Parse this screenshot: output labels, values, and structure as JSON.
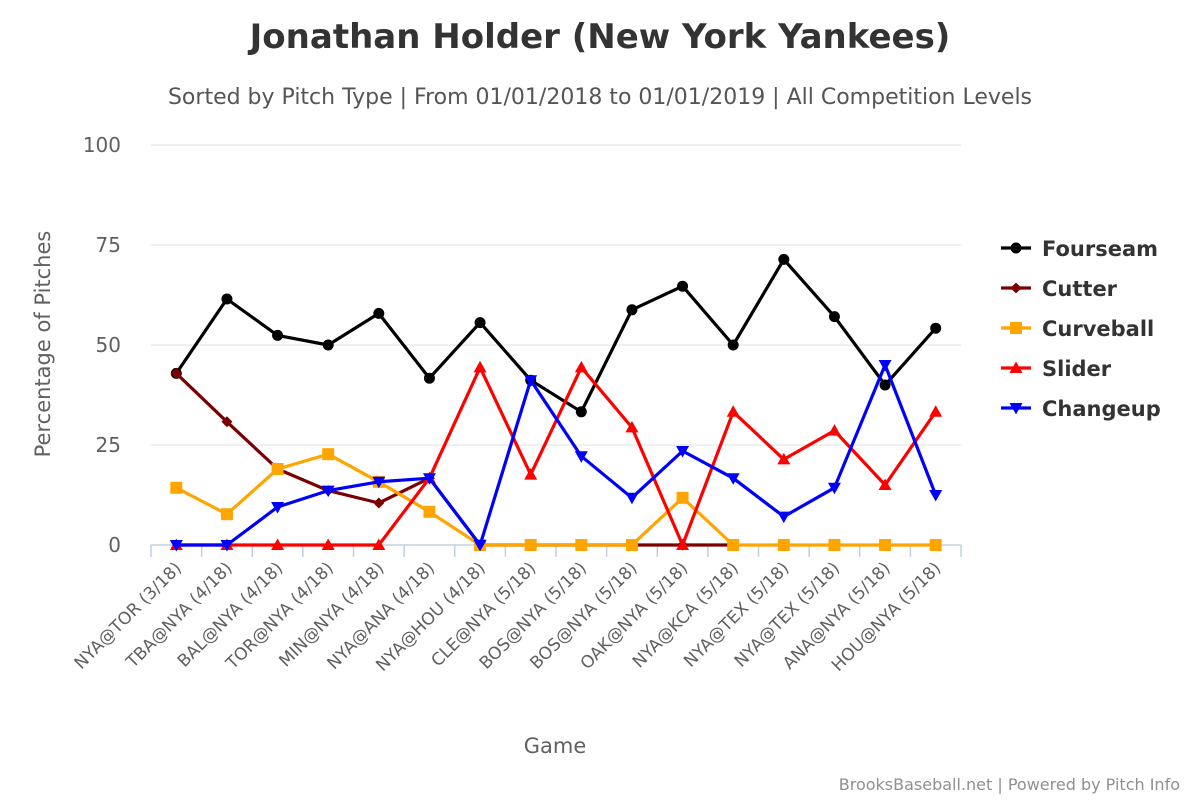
{
  "chart_data": {
    "type": "line",
    "title": "Jonathan Holder (New York Yankees)",
    "subtitle": "Sorted by Pitch Type | From 01/01/2018 to 01/01/2019 | All Competition Levels",
    "xlabel": "Game",
    "ylabel": "Percentage of Pitches",
    "ylim": [
      0,
      100
    ],
    "yticks": [
      0,
      25,
      50,
      75,
      100
    ],
    "grid": true,
    "legend_position": "right",
    "categories": [
      "NYA@TOR (3/18)",
      "TBA@NYA (4/18)",
      "BAL@NYA (4/18)",
      "TOR@NYA (4/18)",
      "MIN@NYA (4/18)",
      "NYA@ANA (4/18)",
      "NYA@HOU (4/18)",
      "CLE@NYA (5/18)",
      "BOS@NYA (5/18)",
      "BOS@NYA (5/18)",
      "OAK@NYA (5/18)",
      "NYA@KCA (5/18)",
      "NYA@TEX (5/18)",
      "NYA@TEX (5/18)",
      "ANA@NYA (5/18)",
      "HOU@NYA (5/18)"
    ],
    "series": [
      {
        "name": "Fourseam",
        "color": "#000000",
        "marker": "circle",
        "values": [
          42.9,
          61.5,
          52.4,
          50.0,
          57.9,
          41.7,
          55.6,
          41.2,
          33.3,
          58.8,
          64.7,
          50.0,
          71.4,
          57.1,
          40.0,
          54.2
        ]
      },
      {
        "name": "Cutter",
        "color": "#7b0000",
        "marker": "diamond",
        "values": [
          42.9,
          30.8,
          19.0,
          13.6,
          10.5,
          16.7,
          0,
          0,
          0,
          0,
          0,
          0,
          null,
          null,
          null,
          null
        ]
      },
      {
        "name": "Curveball",
        "color": "#ffa500",
        "marker": "square",
        "values": [
          14.3,
          7.7,
          19.0,
          22.7,
          15.8,
          8.3,
          0,
          0,
          0,
          0,
          11.8,
          0,
          0,
          0,
          0,
          0
        ]
      },
      {
        "name": "Slider",
        "color": "#ff0000",
        "marker": "triangle",
        "values": [
          0,
          0,
          0,
          0,
          0,
          16.7,
          44.4,
          17.6,
          44.4,
          29.4,
          0,
          33.3,
          21.4,
          28.6,
          15.0,
          33.3
        ]
      },
      {
        "name": "Changeup",
        "color": "#0000ff",
        "marker": "triangle-down",
        "values": [
          0,
          0,
          9.5,
          13.6,
          15.8,
          16.7,
          0,
          41.2,
          22.2,
          11.8,
          23.5,
          16.7,
          7.1,
          14.3,
          45.0,
          12.5
        ]
      }
    ]
  },
  "credit": "BrooksBaseball.net | Powered by Pitch Info"
}
